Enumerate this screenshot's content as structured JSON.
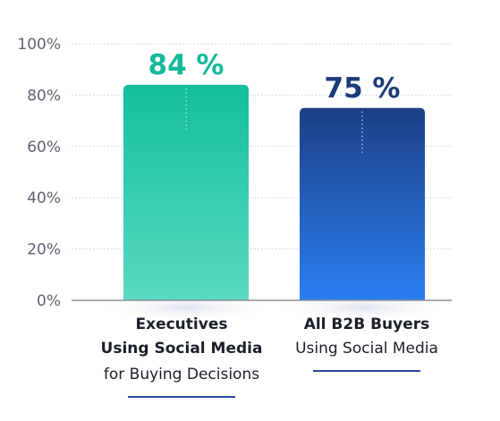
{
  "chart_data": {
    "type": "bar",
    "categories": [
      {
        "line1": "Executives",
        "line2": "Using Social Media",
        "line3": "for Buying Decisions"
      },
      {
        "line1": "All B2B Buyers",
        "line2": "Using Social Media",
        "line3": ""
      }
    ],
    "values": [
      84,
      75
    ],
    "value_labels": [
      "84 %",
      "75 %"
    ],
    "ylim": [
      0,
      100
    ],
    "yticks": [
      0,
      20,
      40,
      60,
      80,
      100
    ],
    "ytick_labels": [
      "0%",
      "20%",
      "40%",
      "60%",
      "80%",
      "100%"
    ],
    "grid": true,
    "colors": {
      "bar1_top": "#13bf9d",
      "bar1_bottom": "#5ad9c2",
      "bar2_top": "#1c3f86",
      "bar2_bottom": "#2a7ef0",
      "label1": "#14b99a",
      "label2": "#1c3a78",
      "grid": "#d5d9e0",
      "axis": "#8a8f99",
      "underline": "#2a4a9a"
    }
  }
}
